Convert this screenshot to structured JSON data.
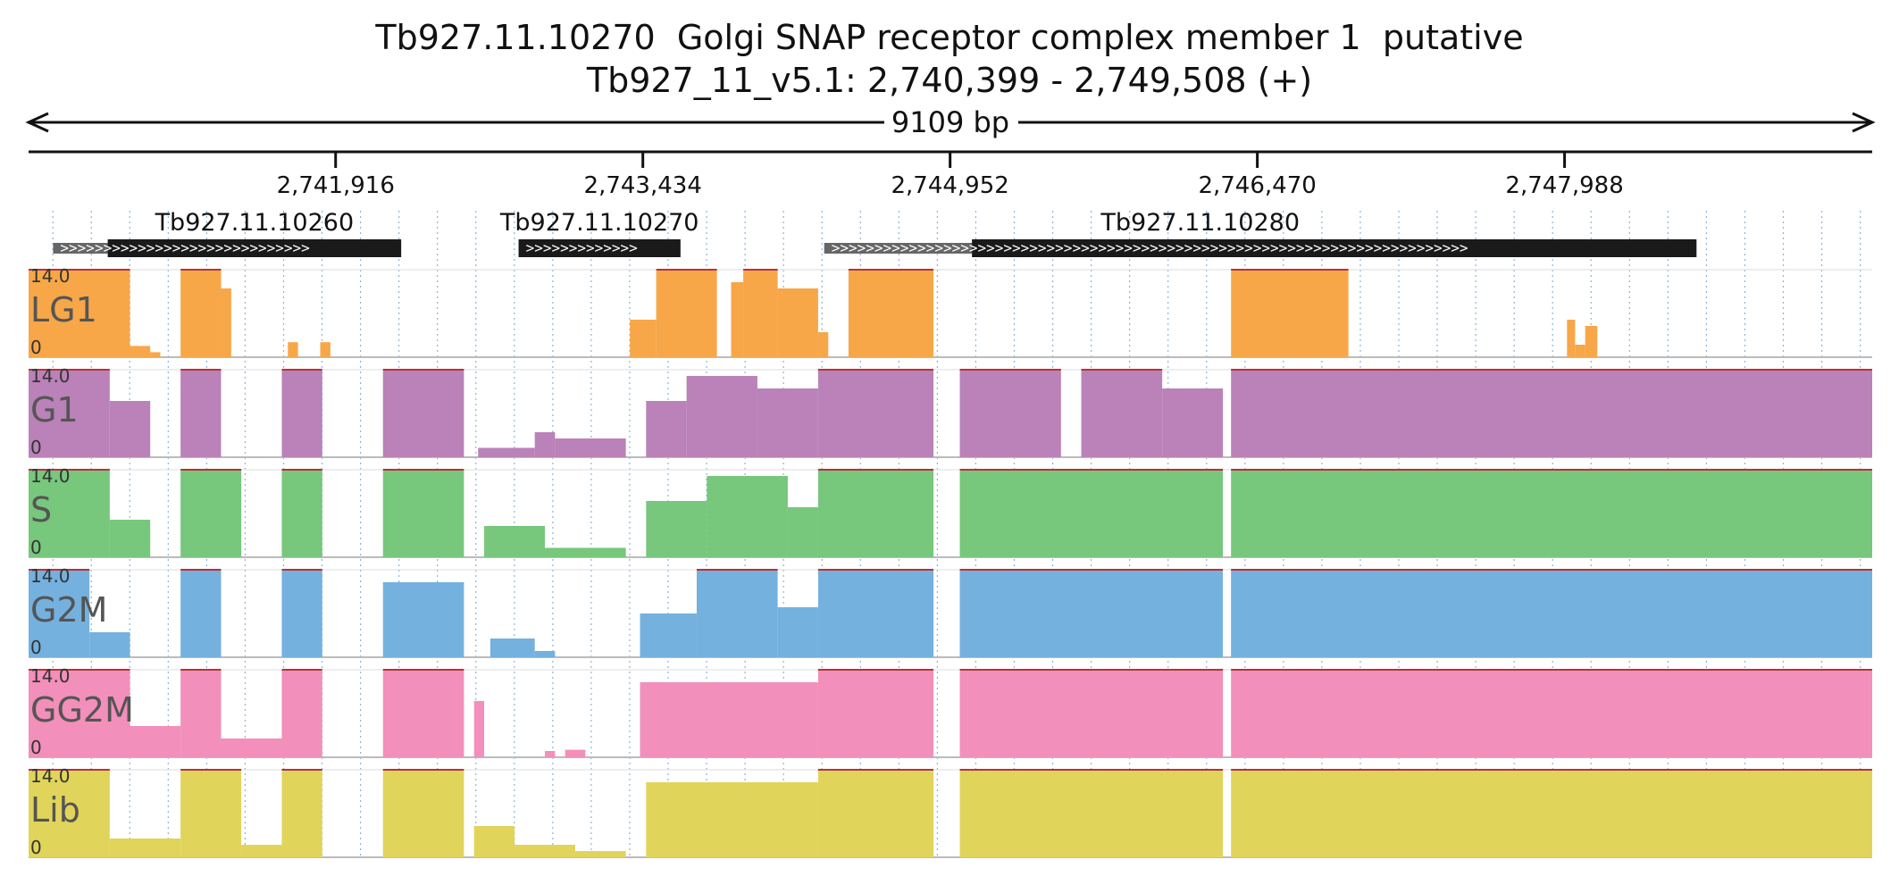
{
  "header": {
    "title": "Tb927.11.10270  Golgi SNAP receptor complex member 1  putative",
    "subtitle": "Tb927_11_v5.1: 2,740,399 - 2,749,508 (+)"
  },
  "chart_data": {
    "type": "area",
    "region": {
      "chromosome": "Tb927_11_v5.1",
      "start": 2740399,
      "end": 2749508,
      "strand": "+",
      "span_label": "9109 bp"
    },
    "x_ticks": [
      {
        "value": 2741916,
        "label": "2,741,916"
      },
      {
        "value": 2743434,
        "label": "2,743,434"
      },
      {
        "value": 2744952,
        "label": "2,744,952"
      },
      {
        "value": 2746470,
        "label": "2,746,470"
      },
      {
        "value": 2747988,
        "label": "2,747,988"
      }
    ],
    "genes": [
      {
        "name": "Tb927.11.10260",
        "utr": [
          2740520,
          2740790
        ],
        "cds": [
          2740790,
          2742240
        ]
      },
      {
        "name": "Tb927.11.10270",
        "utr": null,
        "cds": [
          2742820,
          2743620
        ]
      },
      {
        "name": "Tb927.11.10280",
        "utr": [
          2744330,
          2745060
        ],
        "cds": [
          2745060,
          2748640
        ]
      }
    ],
    "y_range": [
      0,
      14.0
    ],
    "y_min_label": "0",
    "y_max_label": "14.0",
    "series": [
      {
        "name": "LG1",
        "color": "#f7a748",
        "segments": [
          {
            "start": 2740399,
            "end": 2740900,
            "value": 14
          },
          {
            "start": 2740900,
            "end": 2741000,
            "value": 1.8
          },
          {
            "start": 2741000,
            "end": 2741050,
            "value": 0.8
          },
          {
            "start": 2741150,
            "end": 2741350,
            "value": 14
          },
          {
            "start": 2741350,
            "end": 2741400,
            "value": 11
          },
          {
            "start": 2741680,
            "end": 2741730,
            "value": 2.4
          },
          {
            "start": 2741840,
            "end": 2741890,
            "value": 2.4
          },
          {
            "start": 2743370,
            "end": 2743500,
            "value": 6
          },
          {
            "start": 2743500,
            "end": 2743800,
            "value": 14
          },
          {
            "start": 2743870,
            "end": 2743930,
            "value": 12
          },
          {
            "start": 2743930,
            "end": 2744100,
            "value": 14
          },
          {
            "start": 2744100,
            "end": 2744300,
            "value": 11
          },
          {
            "start": 2744300,
            "end": 2744350,
            "value": 4
          },
          {
            "start": 2744450,
            "end": 2744870,
            "value": 14
          },
          {
            "start": 2746340,
            "end": 2746920,
            "value": 14
          },
          {
            "start": 2748000,
            "end": 2748040,
            "value": 6
          },
          {
            "start": 2748040,
            "end": 2748090,
            "value": 2
          },
          {
            "start": 2748090,
            "end": 2748150,
            "value": 5
          }
        ]
      },
      {
        "name": "G1",
        "color": "#ba82b9",
        "segments": [
          {
            "start": 2740399,
            "end": 2740800,
            "value": 14
          },
          {
            "start": 2740800,
            "end": 2741000,
            "value": 9
          },
          {
            "start": 2741150,
            "end": 2741350,
            "value": 14
          },
          {
            "start": 2741650,
            "end": 2741850,
            "value": 14
          },
          {
            "start": 2742150,
            "end": 2742550,
            "value": 14
          },
          {
            "start": 2742620,
            "end": 2742900,
            "value": 1.5
          },
          {
            "start": 2742900,
            "end": 2743000,
            "value": 4
          },
          {
            "start": 2743000,
            "end": 2743350,
            "value": 3
          },
          {
            "start": 2743450,
            "end": 2743650,
            "value": 9
          },
          {
            "start": 2743650,
            "end": 2744000,
            "value": 13
          },
          {
            "start": 2744000,
            "end": 2744300,
            "value": 11
          },
          {
            "start": 2744300,
            "end": 2744870,
            "value": 14
          },
          {
            "start": 2745000,
            "end": 2745500,
            "value": 14
          },
          {
            "start": 2745600,
            "end": 2746000,
            "value": 14
          },
          {
            "start": 2746000,
            "end": 2746300,
            "value": 11
          },
          {
            "start": 2746340,
            "end": 2749508,
            "value": 14
          }
        ]
      },
      {
        "name": "S",
        "color": "#77c77c",
        "segments": [
          {
            "start": 2740399,
            "end": 2740800,
            "value": 14
          },
          {
            "start": 2740800,
            "end": 2741000,
            "value": 6
          },
          {
            "start": 2741150,
            "end": 2741450,
            "value": 14
          },
          {
            "start": 2741650,
            "end": 2741850,
            "value": 14
          },
          {
            "start": 2742150,
            "end": 2742550,
            "value": 14
          },
          {
            "start": 2742650,
            "end": 2742950,
            "value": 5
          },
          {
            "start": 2742950,
            "end": 2743350,
            "value": 1.5
          },
          {
            "start": 2743450,
            "end": 2743750,
            "value": 9
          },
          {
            "start": 2743750,
            "end": 2744150,
            "value": 13
          },
          {
            "start": 2744150,
            "end": 2744300,
            "value": 8
          },
          {
            "start": 2744300,
            "end": 2744870,
            "value": 14
          },
          {
            "start": 2745000,
            "end": 2746300,
            "value": 14
          },
          {
            "start": 2746340,
            "end": 2749508,
            "value": 14
          }
        ]
      },
      {
        "name": "G2M",
        "color": "#74b1df",
        "segments": [
          {
            "start": 2740399,
            "end": 2740700,
            "value": 14
          },
          {
            "start": 2740700,
            "end": 2740900,
            "value": 4
          },
          {
            "start": 2741150,
            "end": 2741350,
            "value": 14
          },
          {
            "start": 2741650,
            "end": 2741850,
            "value": 14
          },
          {
            "start": 2742150,
            "end": 2742550,
            "value": 12
          },
          {
            "start": 2742680,
            "end": 2742900,
            "value": 3
          },
          {
            "start": 2742900,
            "end": 2743000,
            "value": 1
          },
          {
            "start": 2743420,
            "end": 2743700,
            "value": 7
          },
          {
            "start": 2743700,
            "end": 2744100,
            "value": 14
          },
          {
            "start": 2744100,
            "end": 2744300,
            "value": 8
          },
          {
            "start": 2744300,
            "end": 2744870,
            "value": 14
          },
          {
            "start": 2745000,
            "end": 2746300,
            "value": 14
          },
          {
            "start": 2746340,
            "end": 2749508,
            "value": 14
          }
        ]
      },
      {
        "name": "GG2M",
        "color": "#f28fba",
        "segments": [
          {
            "start": 2740399,
            "end": 2740900,
            "value": 14
          },
          {
            "start": 2740900,
            "end": 2741150,
            "value": 5
          },
          {
            "start": 2741150,
            "end": 2741350,
            "value": 14
          },
          {
            "start": 2741350,
            "end": 2741650,
            "value": 3
          },
          {
            "start": 2741650,
            "end": 2741850,
            "value": 14
          },
          {
            "start": 2742150,
            "end": 2742550,
            "value": 14
          },
          {
            "start": 2742600,
            "end": 2742650,
            "value": 9
          },
          {
            "start": 2742950,
            "end": 2743000,
            "value": 1
          },
          {
            "start": 2743050,
            "end": 2743150,
            "value": 1.2
          },
          {
            "start": 2743420,
            "end": 2744300,
            "value": 12
          },
          {
            "start": 2744300,
            "end": 2744870,
            "value": 14
          },
          {
            "start": 2745000,
            "end": 2746300,
            "value": 14
          },
          {
            "start": 2746340,
            "end": 2749508,
            "value": 14
          }
        ]
      },
      {
        "name": "Lib",
        "color": "#e1d45a",
        "segments": [
          {
            "start": 2740399,
            "end": 2740800,
            "value": 14
          },
          {
            "start": 2740800,
            "end": 2741150,
            "value": 3
          },
          {
            "start": 2741150,
            "end": 2741450,
            "value": 14
          },
          {
            "start": 2741450,
            "end": 2741650,
            "value": 2
          },
          {
            "start": 2741650,
            "end": 2741850,
            "value": 14
          },
          {
            "start": 2742150,
            "end": 2742550,
            "value": 14
          },
          {
            "start": 2742600,
            "end": 2742800,
            "value": 5
          },
          {
            "start": 2742800,
            "end": 2743100,
            "value": 2
          },
          {
            "start": 2743100,
            "end": 2743350,
            "value": 1
          },
          {
            "start": 2743450,
            "end": 2744300,
            "value": 12
          },
          {
            "start": 2744300,
            "end": 2744870,
            "value": 14
          },
          {
            "start": 2745000,
            "end": 2746300,
            "value": 14
          },
          {
            "start": 2746340,
            "end": 2749508,
            "value": 14
          }
        ]
      }
    ]
  }
}
